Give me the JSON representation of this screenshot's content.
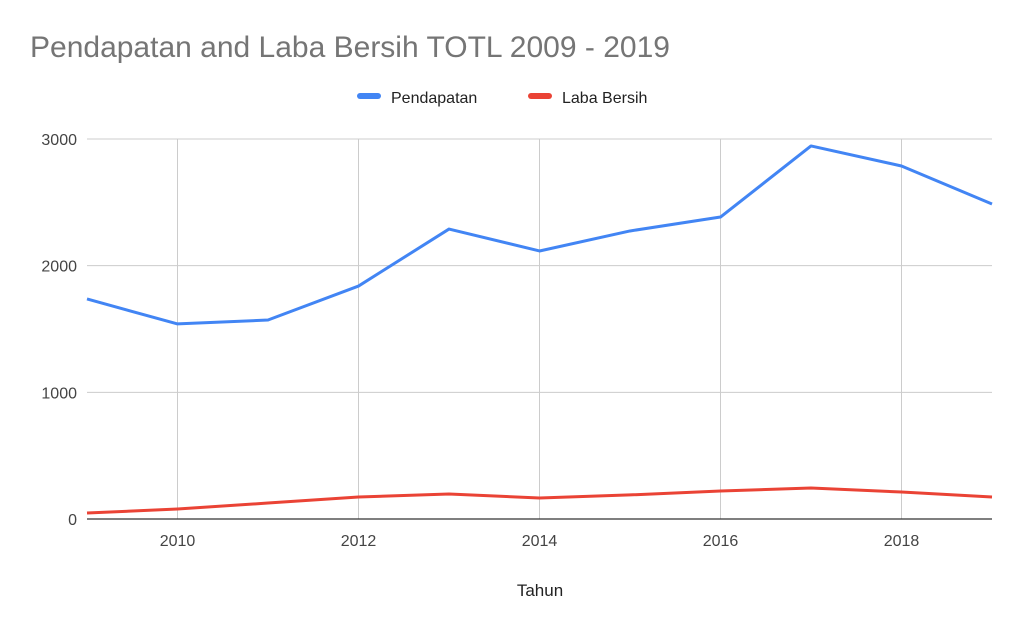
{
  "chart_data": {
    "type": "line",
    "title": "Pendapatan and Laba Bersih TOTL 2009 - 2019",
    "xlabel": "Tahun",
    "ylabel": "",
    "x": [
      2009,
      2010,
      2011,
      2012,
      2013,
      2014,
      2015,
      2016,
      2017,
      2018,
      2019
    ],
    "xlim": [
      2009,
      2019
    ],
    "ylim": [
      0,
      3000
    ],
    "xticks": [
      "2010",
      "2012",
      "2014",
      "2016",
      "2018"
    ],
    "yticks": [
      "0",
      "1000",
      "2000",
      "3000"
    ],
    "grid": true,
    "legend_position": "top",
    "series": [
      {
        "name": "Pendapatan",
        "color": "#4285f4",
        "values": [
          1737,
          1540,
          1571,
          1839,
          2289,
          2116,
          2274,
          2384,
          2945,
          2787,
          2487
        ]
      },
      {
        "name": "Laba Bersih",
        "color": "#ea4335",
        "values": [
          47,
          79,
          126,
          174,
          197,
          166,
          190,
          221,
          245,
          213,
          174
        ]
      }
    ]
  }
}
